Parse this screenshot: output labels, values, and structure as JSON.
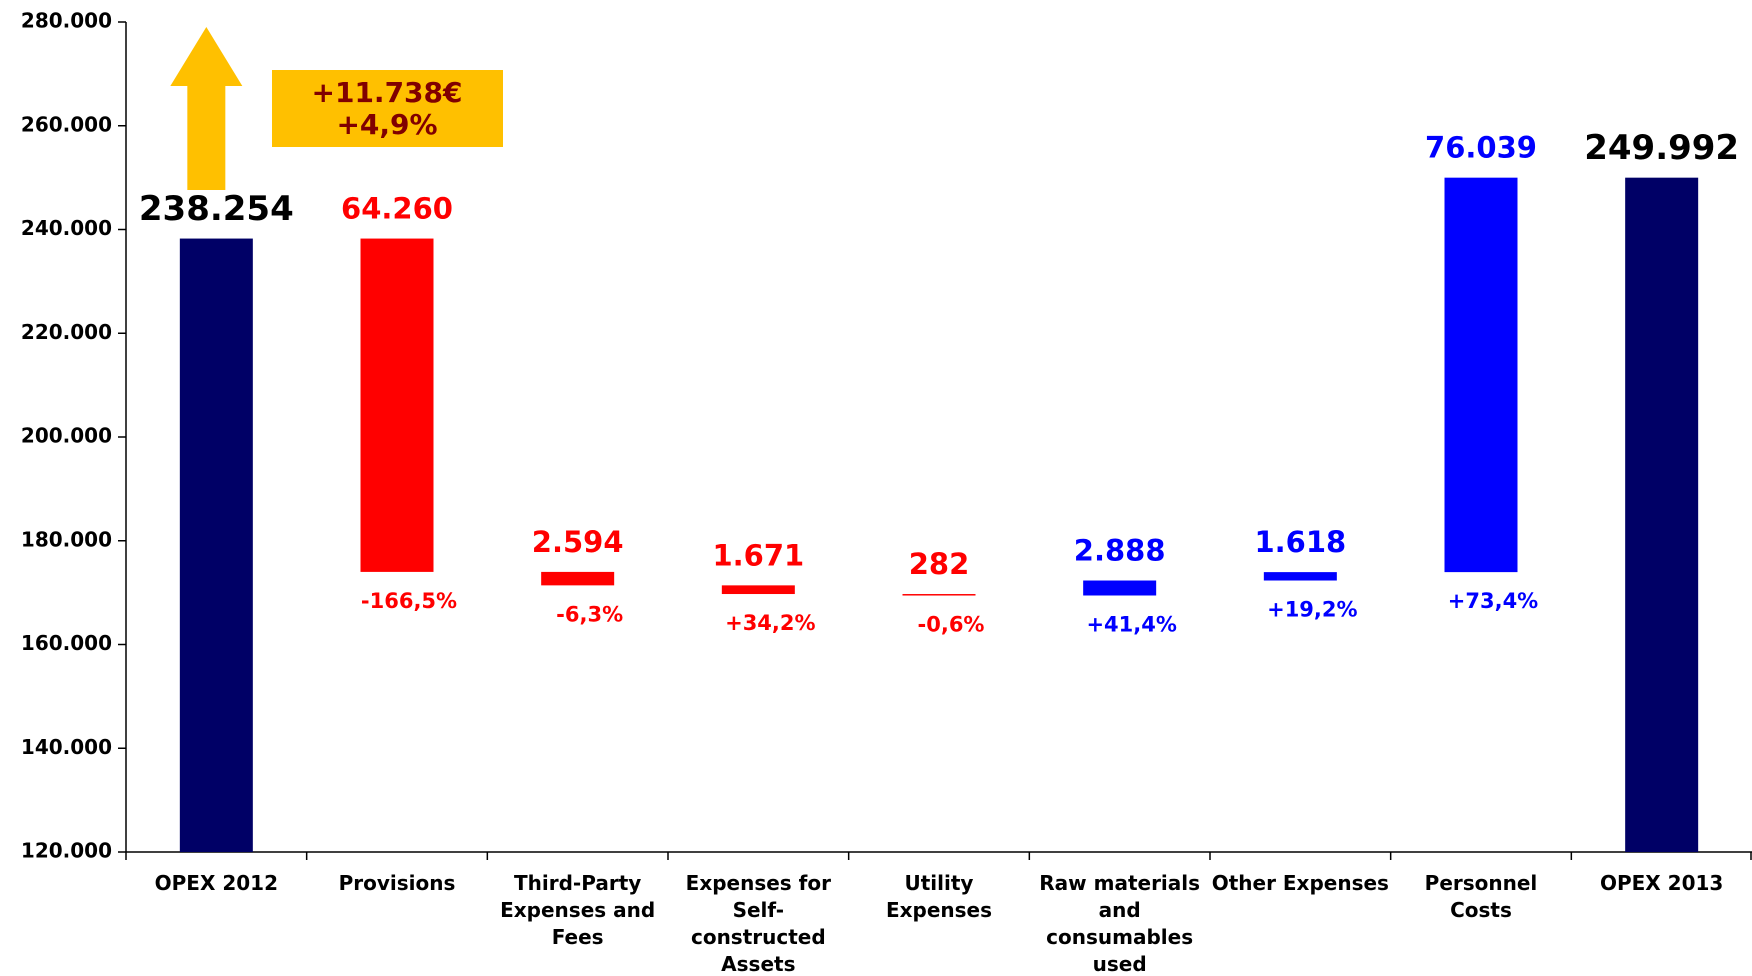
{
  "chart_data": {
    "type": "waterfall",
    "categories": [
      "OPEX 2012",
      "Provisions",
      "Third-Party Expenses and Fees",
      "Expenses for Self-constructed Assets",
      "Utility Expenses",
      "Raw materials and consumables used",
      "Other Expenses",
      "Personnel Costs",
      "OPEX 2013"
    ],
    "values": [
      238254,
      -64260,
      -2594,
      -1671,
      -282,
      2888,
      1618,
      76039,
      249992
    ],
    "value_labels": [
      "238.254",
      "64.260",
      "2.594",
      "1.671",
      "282",
      "2.888",
      "1.618",
      "76.039",
      "249.992"
    ],
    "colors": [
      "#000066",
      "#ff0000",
      "#ff0000",
      "#ff0000",
      "#ff0000",
      "#0000ff",
      "#0000ff",
      "#0000ff",
      "#000066"
    ],
    "label_colors": [
      "#000000",
      "#ff0000",
      "#ff0000",
      "#ff0000",
      "#ff0000",
      "#0000ff",
      "#0000ff",
      "#0000ff",
      "#000000"
    ],
    "percent_changes": [
      null,
      -166.5,
      -6.3,
      34.2,
      -0.6,
      41.4,
      19.2,
      73.4,
      null
    ],
    "percent_labels": [
      null,
      "-166,5%",
      "-6,3%",
      "+34,2%",
      "-0,6%",
      "+41,4%",
      "+19,2%",
      "+73,4%",
      null
    ],
    "ylim": [
      120000,
      280000
    ],
    "yticks": [
      {
        "value": 120000,
        "label": "120.000"
      },
      {
        "value": 140000,
        "label": "140.000"
      },
      {
        "value": 160000,
        "label": "160.000"
      },
      {
        "value": 180000,
        "label": "180.000"
      },
      {
        "value": 200000,
        "label": "200.000"
      },
      {
        "value": 220000,
        "label": "220.000"
      },
      {
        "value": 240000,
        "label": "240.000"
      },
      {
        "value": 260000,
        "label": "260.000"
      },
      {
        "value": 280000,
        "label": "280.000"
      }
    ],
    "annotation": {
      "change": {
        "value": 11738,
        "label": "+11.738€"
      },
      "percent": {
        "value": 4.9,
        "label": "+4,9%"
      },
      "color": "#ffc000",
      "text_color": "#800000"
    }
  }
}
